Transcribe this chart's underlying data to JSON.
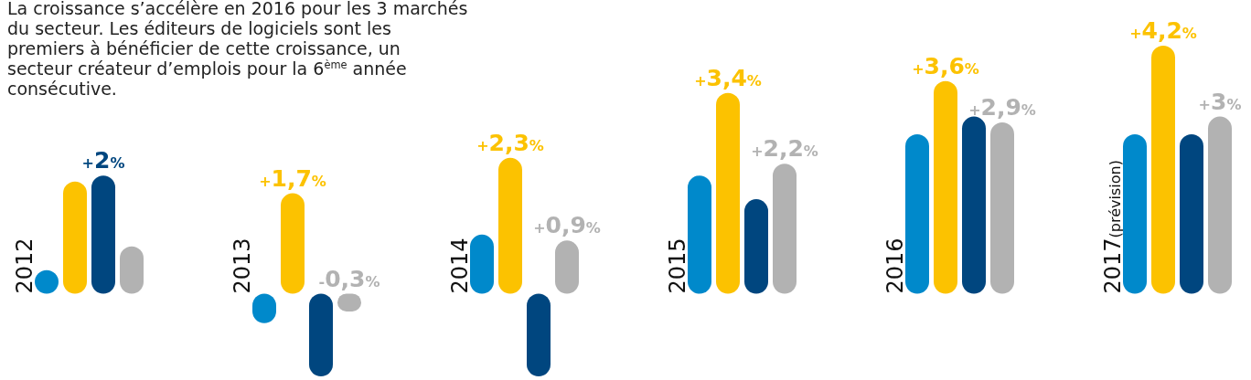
{
  "chart_data": {
    "type": "bar",
    "title": "La croissance s’accélère en 2016 pour les 3 marchés du secteur. Les éditeurs de logiciels sont les premiers à bénéficier de cette croissance, un secteur créateur d’emplois pour la 6$^{ème}$ année consécutive.",
    "categories": [
      "2012",
      "2013",
      "2014",
      "2015",
      "2016",
      "2017(prévision)"
    ],
    "series": [
      {
        "color": "#0089cb",
        "values": [
          0.4,
          -0.5,
          1.0,
          2.0,
          2.7,
          2.7
        ],
        "value_labels": [
          null,
          null,
          null,
          null,
          null,
          null
        ]
      },
      {
        "color": "#fcc200",
        "values": [
          1.9,
          1.7,
          2.3,
          3.4,
          3.6,
          4.2
        ],
        "value_labels": [
          null,
          "+1,7%",
          "+2,3%",
          "+3,4%",
          "+3,6%",
          "+4,2%"
        ]
      },
      {
        "color": "#00467f",
        "values": [
          2.0,
          -1.4,
          -1.4,
          1.6,
          3.0,
          2.7
        ],
        "value_labels": [
          "+2%",
          null,
          null,
          null,
          null,
          null
        ]
      },
      {
        "color": "#b2b2b2",
        "values": [
          0.8,
          -0.3,
          0.9,
          2.2,
          2.9,
          3.0
        ],
        "value_labels": [
          null,
          "-0,3%",
          "+0,9%",
          "+2,2%",
          "+2,9%",
          "+3%"
        ]
      }
    ]
  }
}
